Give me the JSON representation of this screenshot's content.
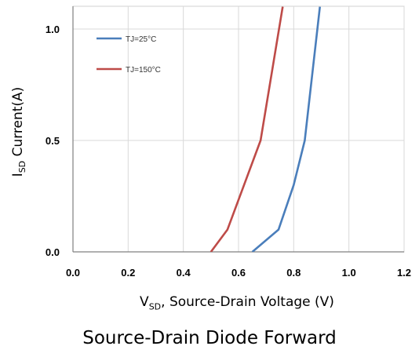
{
  "chart_data": {
    "type": "line",
    "title": "",
    "xlabel": {
      "main": "V",
      "sub": "SD",
      "rest": ", Source‐Drain Voltage (V)"
    },
    "ylabel": {
      "main": "I",
      "sub": "SD",
      "rest": " Current(A)"
    },
    "xlim": [
      0,
      1.2
    ],
    "ylim": [
      0,
      1.0
    ],
    "xticks": [
      "0.0",
      "0.2",
      "0.4",
      "0.6",
      "0.8",
      "1.0",
      "1.2"
    ],
    "yticks": [
      "0.0",
      "0.5",
      "1.0"
    ],
    "grid": true,
    "legend_position": "top-left",
    "series": [
      {
        "name": "TJ=25°C",
        "color": "#4a7ebb",
        "x": [
          0.65,
          0.745,
          0.8,
          0.84,
          0.895
        ],
        "y": [
          0.0,
          0.1,
          0.3,
          0.5,
          1.1
        ]
      },
      {
        "name": "TJ=150°C",
        "color": "#be4b48",
        "x": [
          0.5,
          0.56,
          0.62,
          0.68,
          0.76
        ],
        "y": [
          0.0,
          0.1,
          0.3,
          0.5,
          1.1
        ]
      }
    ]
  },
  "caption": "Source‐Drain Diode Forward"
}
